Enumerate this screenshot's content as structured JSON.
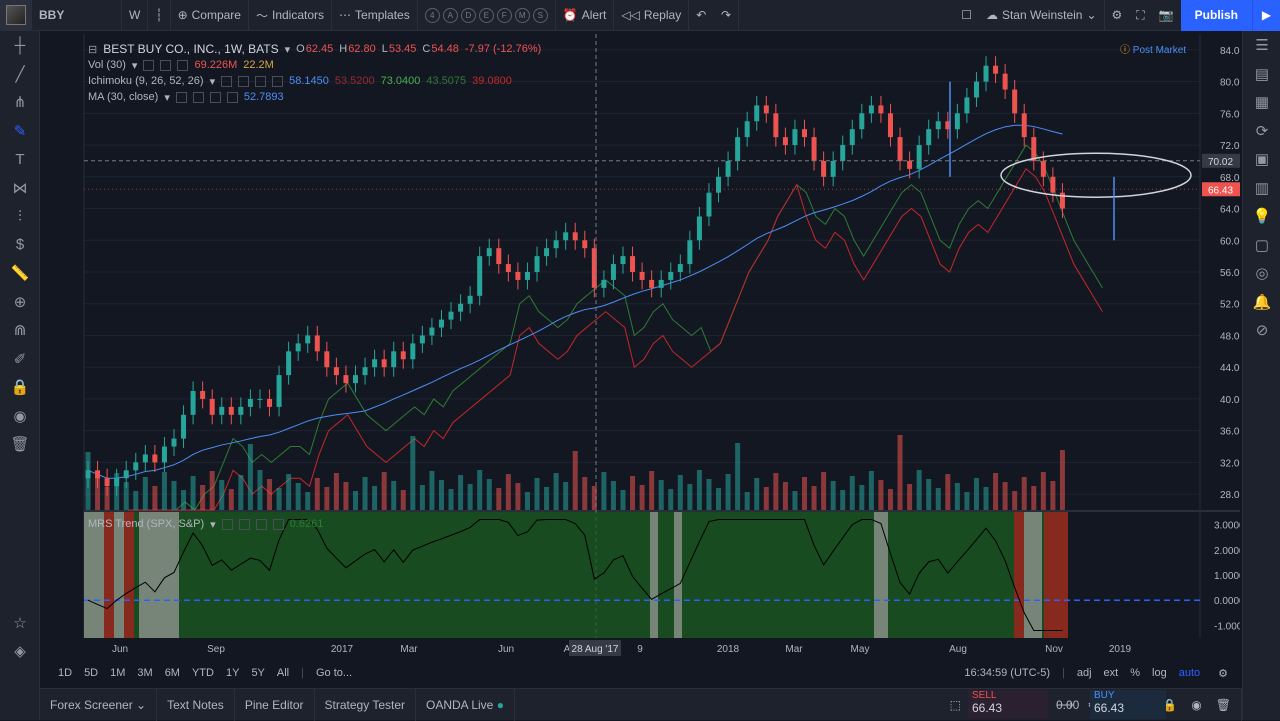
{
  "topbar": {
    "symbol": "BBY",
    "interval": "W",
    "compare": "Compare",
    "indicators": "Indicators",
    "templates": "Templates",
    "circle_letters": [
      "4",
      "A",
      "D",
      "E",
      "F",
      "M",
      "S"
    ],
    "alert": "Alert",
    "replay": "Replay",
    "layout_name": "Stan Weinstein",
    "publish": "Publish"
  },
  "legend": {
    "title": "BEST BUY CO., INC., 1W, BATS",
    "open_label": "O",
    "open": "62.45",
    "high_label": "H",
    "high": "62.80",
    "low_label": "L",
    "low": "53.45",
    "close_label": "C",
    "close": "54.48",
    "change": "-7.97 (-12.76%)",
    "vol_label": "Vol (30)",
    "vol1": "69.226M",
    "vol2": "22.2M",
    "ichimoku_label": "Ichimoku (9, 26, 52, 26)",
    "ichi_vals": [
      "58.1450",
      "53.5200",
      "73.0400",
      "43.5075",
      "39.0800"
    ],
    "ma_label": "MA (30, close)",
    "ma_val": "52.7893",
    "mrs_label": "MRS Trend (SPX, S&P)",
    "mrs_val": "0.6261",
    "post_market": "Post Market"
  },
  "axes": {
    "price_ticks": [
      "84.00",
      "80.00",
      "76.00",
      "72.00",
      "68.00",
      "64.00",
      "60.00",
      "56.00",
      "52.00",
      "48.00",
      "44.00",
      "40.00",
      "36.00",
      "32.00",
      "28.00"
    ],
    "indicator_ticks": [
      "3.0000",
      "2.0000",
      "1.0000",
      "0.0000",
      "-1.0000"
    ],
    "time_labels": [
      "Jun",
      "Sep",
      "2017",
      "Mar",
      "Jun",
      "A",
      "28 Aug '17",
      "9",
      "2018",
      "Mar",
      "May",
      "Aug",
      "Nov",
      "2019"
    ],
    "crosshair_price": "70.02",
    "last_price": "66.43"
  },
  "chart_data": {
    "type": "candlestick",
    "title": "BEST BUY CO., INC., 1W, BATS",
    "ylim": [
      26,
      86
    ],
    "weekly_closes": [
      31,
      30,
      29,
      30,
      31,
      32,
      33,
      32,
      34,
      35,
      38,
      41,
      40,
      38,
      39,
      38,
      39,
      40,
      40,
      39,
      43,
      46,
      47,
      48,
      46,
      44,
      43,
      42,
      43,
      44,
      45,
      44,
      46,
      45,
      47,
      48,
      49,
      50,
      51,
      52,
      53,
      58,
      59,
      57,
      56,
      55,
      56,
      58,
      59,
      60,
      61,
      60,
      59,
      54,
      55,
      57,
      58,
      56,
      55,
      54,
      55,
      56,
      57,
      60,
      63,
      66,
      68,
      70,
      73,
      75,
      77,
      76,
      73,
      72,
      74,
      73,
      70,
      68,
      70,
      72,
      74,
      76,
      77,
      76,
      73,
      70,
      69,
      72,
      74,
      75,
      74,
      76,
      78,
      80,
      82,
      81,
      79,
      76,
      73,
      70,
      68,
      66,
      64
    ]
  },
  "bottom": {
    "ranges": [
      "1D",
      "5D",
      "1M",
      "3M",
      "6M",
      "YTD",
      "1Y",
      "5Y",
      "All"
    ],
    "goto": "Go to...",
    "time": "16:34:59 (UTC-5)",
    "opts": [
      "adj",
      "ext",
      "%",
      "log",
      "auto"
    ]
  },
  "status": {
    "tabs": [
      "Forex Screener",
      "Text Notes",
      "Pine Editor",
      "Strategy Tester",
      "OANDA Live"
    ],
    "sell_label": "SELL",
    "sell": "66.43",
    "spread": "0.00",
    "buy_label": "BUY",
    "buy": "66.43"
  },
  "colors": {
    "up": "#26a69a",
    "down": "#ef5350",
    "accent": "#2962ff"
  }
}
